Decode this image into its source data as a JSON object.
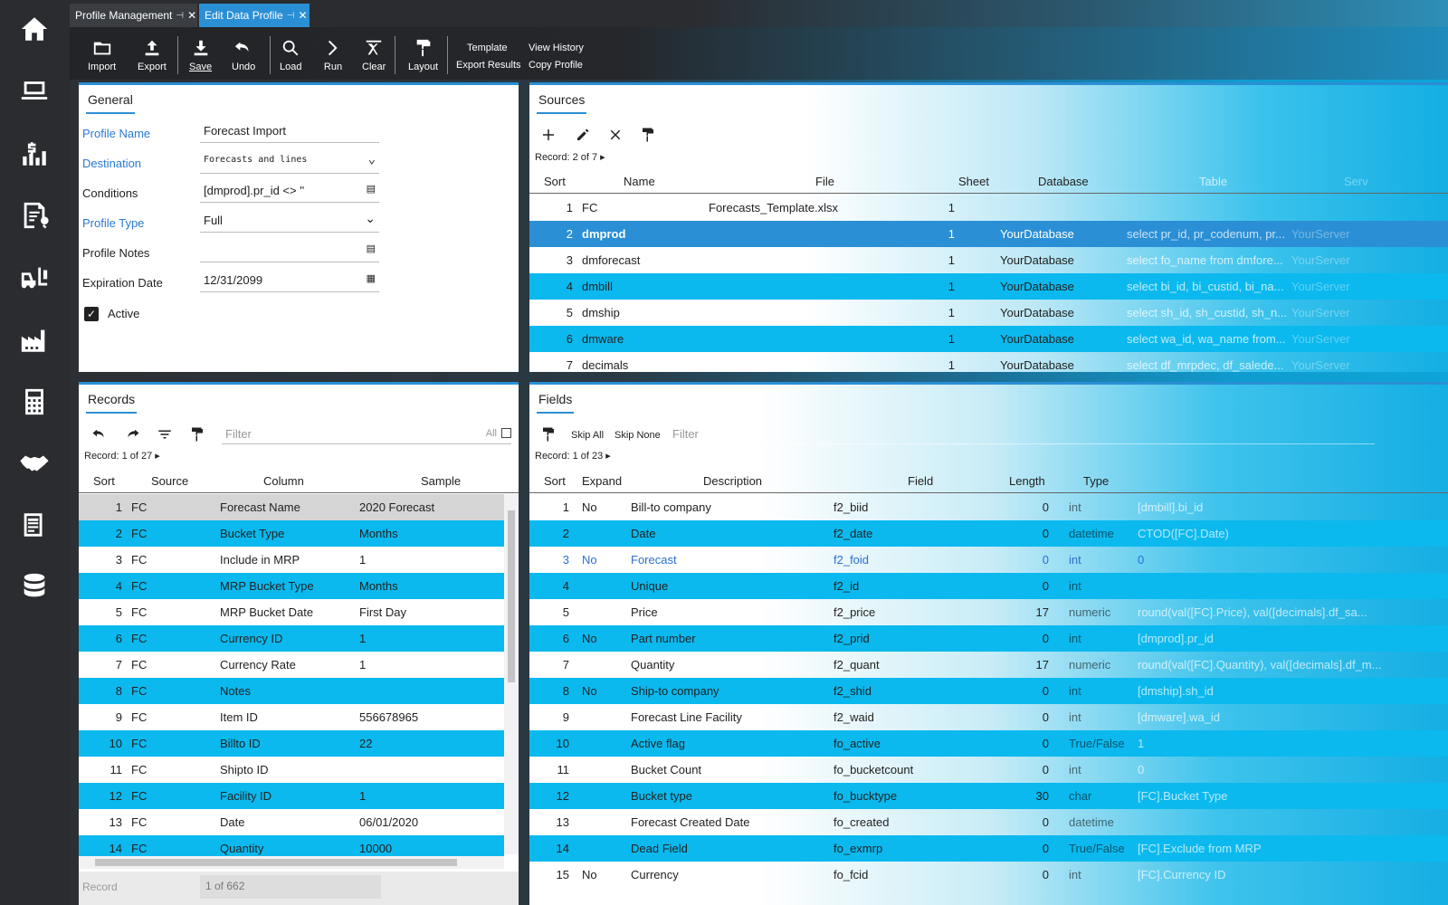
{
  "sidebar": {
    "icons": [
      "home-icon",
      "laptop-icon",
      "finance-chart-icon",
      "report-search-icon",
      "forklift-icon",
      "factory-icon",
      "calculator-icon",
      "handshake-icon",
      "document-icon",
      "database-icon"
    ]
  },
  "tabs": [
    {
      "label": "Profile Management"
    },
    {
      "label": "Edit Data Profile"
    }
  ],
  "toolbar": {
    "import": "Import",
    "export": "Export",
    "save": "Save",
    "undo": "Undo",
    "load": "Load",
    "run": "Run",
    "clear": "Clear",
    "layout": "Layout",
    "template": "Template",
    "export_results": "Export Results",
    "view_history": "View History",
    "copy_profile": "Copy Profile"
  },
  "general": {
    "title": "General",
    "profile_name_label": "Profile Name",
    "profile_name": "Forecast Import",
    "destination_label": "Destination",
    "destination": "Forecasts and lines",
    "conditions_label": "Conditions",
    "conditions": "[dmprod].pr_id <> ''",
    "profile_type_label": "Profile Type",
    "profile_type": "Full",
    "profile_notes_label": "Profile Notes",
    "profile_notes": "",
    "expiration_label": "Expiration Date",
    "expiration": "12/31/2099",
    "active_label": "Active"
  },
  "sources": {
    "title": "Sources",
    "record_info": "Record: 2 of 7",
    "columns": {
      "sort": "Sort",
      "name": "Name",
      "file": "File",
      "sheet": "Sheet",
      "database": "Database",
      "table": "Table",
      "server": "Serv"
    },
    "rows": [
      {
        "sort": "1",
        "name": "FC",
        "file": "Forecasts_Template.xlsx",
        "sheet": "1",
        "database": "",
        "table": "",
        "server": ""
      },
      {
        "sort": "2",
        "name": "dmprod",
        "file": "",
        "sheet": "1",
        "database": "YourDatabase",
        "table": "select pr_id, pr_codenum, pr...",
        "server": "YourServer"
      },
      {
        "sort": "3",
        "name": "dmforecast",
        "file": "",
        "sheet": "1",
        "database": "YourDatabase",
        "table": "select fo_name from dmfore...",
        "server": "YourServer"
      },
      {
        "sort": "4",
        "name": "dmbill",
        "file": "",
        "sheet": "1",
        "database": "YourDatabase",
        "table": "select bi_id, bi_custid, bi_na...",
        "server": "YourServer"
      },
      {
        "sort": "5",
        "name": "dmship",
        "file": "",
        "sheet": "1",
        "database": "YourDatabase",
        "table": "select sh_id, sh_custid, sh_n...",
        "server": "YourServer"
      },
      {
        "sort": "6",
        "name": "dmware",
        "file": "",
        "sheet": "1",
        "database": "YourDatabase",
        "table": "select wa_id, wa_name from...",
        "server": "YourServer"
      },
      {
        "sort": "7",
        "name": "decimals",
        "file": "",
        "sheet": "1",
        "database": "YourDatabase",
        "table": "select df_mrpdec, df_salede...",
        "server": "YourServer"
      }
    ]
  },
  "records": {
    "title": "Records",
    "filter_placeholder": "Filter",
    "all_label": "All",
    "record_info": "Record: 1 of 27",
    "columns": {
      "sort": "Sort",
      "source": "Source",
      "column": "Column",
      "sample": "Sample"
    },
    "rows": [
      {
        "sort": "1",
        "source": "FC",
        "column": "Forecast Name",
        "sample": "2020 Forecast"
      },
      {
        "sort": "2",
        "source": "FC",
        "column": "Bucket Type",
        "sample": "Months"
      },
      {
        "sort": "3",
        "source": "FC",
        "column": "Include in MRP",
        "sample": "1"
      },
      {
        "sort": "4",
        "source": "FC",
        "column": "MRP Bucket Type",
        "sample": "Months"
      },
      {
        "sort": "5",
        "source": "FC",
        "column": "MRP Bucket Date",
        "sample": "First Day"
      },
      {
        "sort": "6",
        "source": "FC",
        "column": "Currency ID",
        "sample": "1"
      },
      {
        "sort": "7",
        "source": "FC",
        "column": "Currency Rate",
        "sample": "1"
      },
      {
        "sort": "8",
        "source": "FC",
        "column": "Notes",
        "sample": ""
      },
      {
        "sort": "9",
        "source": "FC",
        "column": "Item ID",
        "sample": "556678965"
      },
      {
        "sort": "10",
        "source": "FC",
        "column": "Billto ID",
        "sample": "22"
      },
      {
        "sort": "11",
        "source": "FC",
        "column": "Shipto ID",
        "sample": ""
      },
      {
        "sort": "12",
        "source": "FC",
        "column": "Facility ID",
        "sample": "1"
      },
      {
        "sort": "13",
        "source": "FC",
        "column": "Date",
        "sample": "06/01/2020"
      },
      {
        "sort": "14",
        "source": "FC",
        "column": "Quantity",
        "sample": "10000"
      }
    ],
    "footer_label": "Record",
    "footer_value": "1 of 662"
  },
  "fields": {
    "title": "Fields",
    "skip_all": "Skip All",
    "skip_none": "Skip None",
    "filter_placeholder": "Filter",
    "record_info": "Record: 1 of 23",
    "columns": {
      "sort": "Sort",
      "expand": "Expand",
      "description": "Description",
      "field": "Field",
      "length": "Length",
      "type": "Type"
    },
    "rows": [
      {
        "sort": "1",
        "expand": "No",
        "description": "Bill-to company",
        "field": "f2_biid",
        "length": "0",
        "type": "int",
        "expr": "[dmbill].bi_id"
      },
      {
        "sort": "2",
        "expand": "",
        "description": "Date",
        "field": "f2_date",
        "length": "0",
        "type": "datetime",
        "expr": "CTOD([FC].Date)"
      },
      {
        "sort": "3",
        "expand": "No",
        "description": "Forecast",
        "field": "f2_foid",
        "length": "0",
        "type": "int",
        "expr": "0"
      },
      {
        "sort": "4",
        "expand": "",
        "description": "Unique",
        "field": "f2_id",
        "length": "0",
        "type": "int",
        "expr": ""
      },
      {
        "sort": "5",
        "expand": "",
        "description": "Price",
        "field": "f2_price",
        "length": "17",
        "type": "numeric",
        "expr": "round(val([FC].Price), val([decimals].df_sa..."
      },
      {
        "sort": "6",
        "expand": "No",
        "description": "Part number",
        "field": "f2_prid",
        "length": "0",
        "type": "int",
        "expr": "[dmprod].pr_id"
      },
      {
        "sort": "7",
        "expand": "",
        "description": "Quantity",
        "field": "f2_quant",
        "length": "17",
        "type": "numeric",
        "expr": "round(val([FC].Quantity), val([decimals].df_m..."
      },
      {
        "sort": "8",
        "expand": "No",
        "description": "Ship-to company",
        "field": "f2_shid",
        "length": "0",
        "type": "int",
        "expr": "[dmship].sh_id"
      },
      {
        "sort": "9",
        "expand": "",
        "description": "Forecast Line Facility",
        "field": "f2_waid",
        "length": "0",
        "type": "int",
        "expr": "[dmware].wa_id"
      },
      {
        "sort": "10",
        "expand": "",
        "description": "Active flag",
        "field": "fo_active",
        "length": "0",
        "type": "True/False",
        "expr": "1"
      },
      {
        "sort": "11",
        "expand": "",
        "description": "Bucket Count",
        "field": "fo_bucketcount",
        "length": "0",
        "type": "int",
        "expr": "0"
      },
      {
        "sort": "12",
        "expand": "",
        "description": "Bucket type",
        "field": "fo_bucktype",
        "length": "30",
        "type": "char",
        "expr": "[FC].Bucket Type"
      },
      {
        "sort": "13",
        "expand": "",
        "description": "Forecast Created Date",
        "field": "fo_created",
        "length": "0",
        "type": "datetime",
        "expr": ""
      },
      {
        "sort": "14",
        "expand": "",
        "description": "Dead Field",
        "field": "fo_exmrp",
        "length": "0",
        "type": "True/False",
        "expr": "[FC].Exclude from MRP"
      },
      {
        "sort": "15",
        "expand": "No",
        "description": "Currency",
        "field": "fo_fcid",
        "length": "0",
        "type": "int",
        "expr": "[FC].Currency ID"
      }
    ]
  }
}
